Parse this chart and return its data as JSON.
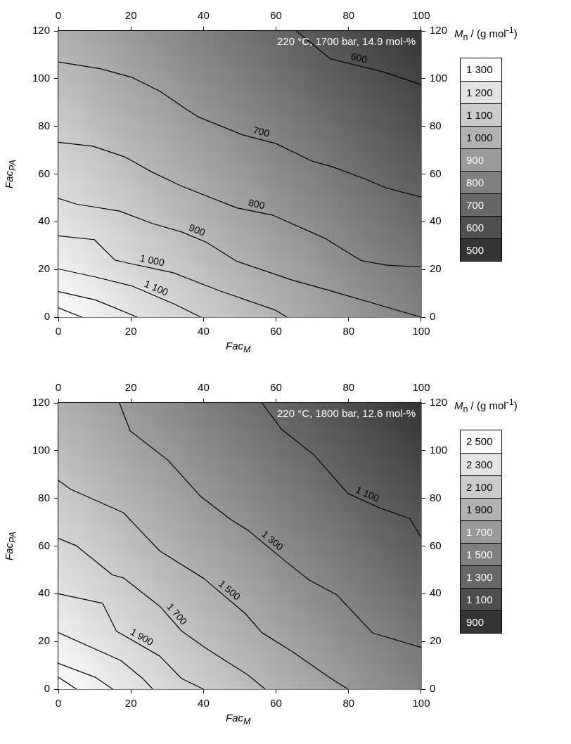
{
  "chart_data": [
    {
      "type": "line",
      "xlabel": "Fac$_{M}$",
      "ylabel": "Fac$_{PA}$",
      "clabel": "M$_{n}$ / (g mol$^{-1}$)",
      "annotations": [
        "220 °C, 1700 bar, 14.9 mol-%"
      ],
      "legend": false,
      "grid": false,
      "marker": "none",
      "xlim": [
        0,
        100
      ],
      "xticks": [
        0,
        20,
        40,
        60,
        80,
        100
      ],
      "x2lim": [
        0,
        100
      ],
      "x2ticks": [
        0,
        20,
        40,
        60,
        80,
        100
      ],
      "ylim": [
        0,
        120
      ],
      "yticks": [
        0,
        20,
        40,
        60,
        80,
        100,
        120
      ],
      "y2lim": [
        0,
        120
      ],
      "y2ticks": [
        0,
        20,
        40,
        60,
        80,
        100,
        120
      ],
      "clim": [
        450,
        1350
      ],
      "cticks": [
        500,
        600,
        700,
        800,
        900,
        {
          "value": 1000,
          "label": "1 000"
        },
        {
          "value": 1100,
          "label": "1 100"
        },
        {
          "value": 1200,
          "label": "1 200"
        },
        {
          "value": 1300,
          "label": "1 300"
        }
      ],
      "series": [
        {
          "name": "600",
          "color": "#000000",
          "x": [
            65.6,
            75,
            89.7,
            100
          ],
          "values": [
            120,
            108.3,
            102.8,
            97.5
          ]
        },
        {
          "name": "700",
          "color": "#000000",
          "x": [
            0,
            11.5,
            20.2,
            27.9,
            35.5,
            38.5,
            50.8,
            60,
            69.9,
            75.2,
            84.4,
            90.5,
            100
          ],
          "values": [
            107,
            104.2,
            100.6,
            94.8,
            86.9,
            84,
            76.4,
            72.8,
            65.4,
            63.2,
            58,
            54.1,
            50.4
          ]
        },
        {
          "name": "800",
          "color": "#000000",
          "x": [
            0,
            9.5,
            18.3,
            25.6,
            34,
            49.2,
            59.2,
            73.7,
            82.4,
            83.6,
            90.5,
            100
          ],
          "values": [
            73.3,
            71.7,
            67.2,
            61,
            54.9,
            45.8,
            42.7,
            32.9,
            24.7,
            23.7,
            21.8,
            21
          ]
        },
        {
          "name": "900",
          "color": "#000000",
          "x": [
            0,
            5,
            16.8,
            26,
            34,
            40.8,
            49.2,
            64.5,
            74.4,
            100
          ],
          "values": [
            49.8,
            47.4,
            44.5,
            39.2,
            35.7,
            31.4,
            23.4,
            15.5,
            11.3,
            0
          ]
        },
        {
          "name": "1 000",
          "color": "#000000",
          "x": [
            0,
            9.9,
            15.6,
            19.1,
            31.7,
            44.7,
            59.9,
            63
          ],
          "values": [
            34.1,
            32.5,
            23.9,
            22.7,
            18.6,
            10.9,
            2.9,
            0
          ]
        },
        {
          "name": "1 100",
          "color": "#000000",
          "x": [
            0,
            10.3,
            20.2,
            32.1,
            39.3
          ],
          "values": [
            20.2,
            16.8,
            13.1,
            5.4,
            0
          ]
        },
        {
          "color": "#000000",
          "x": [
            0,
            10.3,
            21.8
          ],
          "values": [
            10.7,
            7.2,
            0
          ]
        },
        {
          "color": "#000000",
          "x": [
            0,
            6.5
          ],
          "values": [
            3.9,
            0
          ]
        }
      ]
    },
    {
      "type": "line",
      "xlabel": "Fac$_{M}$",
      "ylabel": "Fac$_{PA}$",
      "clabel": "M$_{n}$ / (g mol$^{-1}$)",
      "annotations": [
        "220 °C, 1800 bar, 12.6 mol-%"
      ],
      "legend": false,
      "grid": false,
      "marker": "none",
      "xlim": [
        0,
        100
      ],
      "xticks": [
        0,
        20,
        40,
        60,
        80,
        100
      ],
      "x2lim": [
        0,
        100
      ],
      "x2ticks": [
        0,
        20,
        40,
        60,
        80,
        100
      ],
      "ylim": [
        0,
        120
      ],
      "yticks": [
        0,
        20,
        40,
        60,
        80,
        100,
        120
      ],
      "y2lim": [
        0,
        120
      ],
      "y2ticks": [
        0,
        20,
        40,
        60,
        80,
        100,
        120
      ],
      "clim": [
        800,
        2600
      ],
      "cticks": [
        900,
        {
          "value": 1100,
          "label": "1 100"
        },
        {
          "value": 1300,
          "label": "1 300"
        },
        {
          "value": 1500,
          "label": "1 500"
        },
        {
          "value": 1700,
          "label": "1 700"
        },
        {
          "value": 1900,
          "label": "1 900"
        },
        {
          "value": 2100,
          "label": "2 100"
        },
        {
          "value": 2300,
          "label": "2 300"
        },
        {
          "value": 2500,
          "label": "2 500"
        }
      ],
      "series": [
        {
          "name": "1 100",
          "color": "#000000",
          "x": [
            56.1,
            61.5,
            70.6,
            79.8,
            88.9,
            96.9,
            100
          ],
          "values": [
            120,
            109,
            98,
            82,
            75.8,
            71.5,
            63.6
          ]
        },
        {
          "name": "1 300",
          "color": "#000000",
          "x": [
            16.8,
            19.8,
            30.2,
            39.3,
            47.7,
            52.3,
            63,
            69.1,
            76.7,
            86.6,
            100
          ],
          "values": [
            120,
            108.3,
            96,
            80.7,
            70.9,
            66.6,
            53.1,
            45.8,
            39.6,
            23.6,
            17.5
          ]
        },
        {
          "name": "1 500",
          "color": "#000000",
          "x": [
            0,
            3.4,
            17.9,
            27.9,
            40.1,
            51.5,
            56.1,
            64.5,
            75.2,
            79.8
          ],
          "values": [
            87.5,
            83.8,
            74,
            58,
            46.4,
            31.7,
            23.7,
            15.7,
            4.4,
            0
          ]
        },
        {
          "name": "1 700",
          "color": "#000000",
          "x": [
            0,
            5,
            14.9,
            18,
            28.2,
            34,
            40.8,
            52.3,
            57
          ],
          "values": [
            63.2,
            60.1,
            47.9,
            46.6,
            34.4,
            24.3,
            17,
            5.9,
            0
          ]
        },
        {
          "name": "1 900",
          "color": "#000000",
          "x": [
            0,
            12.2,
            16,
            27.9,
            34,
            40
          ],
          "values": [
            40,
            36,
            24.3,
            13.9,
            4.4,
            0
          ]
        },
        {
          "color": "#000000",
          "x": [
            0,
            17.2,
            23.3,
            26
          ],
          "values": [
            23.7,
            12,
            4.4,
            0
          ]
        },
        {
          "color": "#000000",
          "x": [
            0,
            10.3,
            15
          ],
          "values": [
            10.8,
            4.9,
            0
          ]
        },
        {
          "color": "#000000",
          "x": [
            0,
            5
          ],
          "values": [
            5,
            0
          ]
        }
      ]
    }
  ]
}
